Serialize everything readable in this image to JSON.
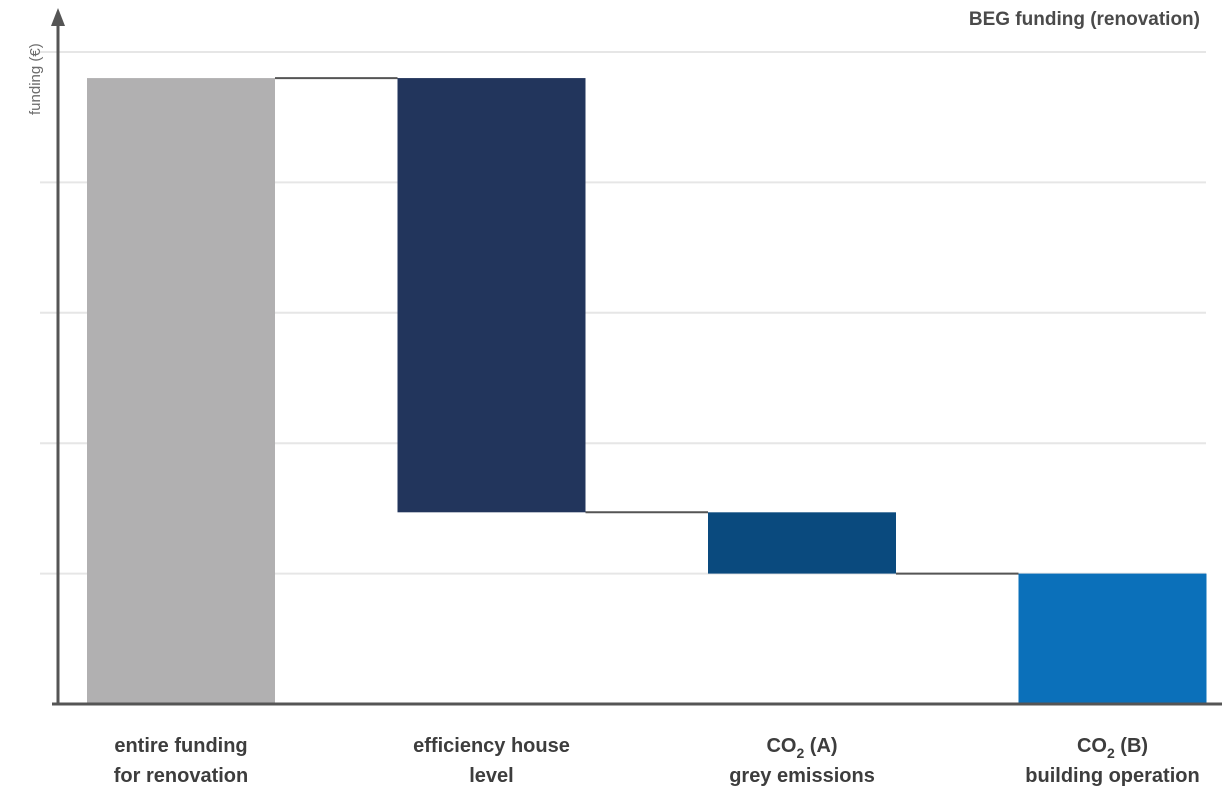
{
  "chart_data": {
    "type": "bar",
    "subtype": "waterfall",
    "title": "BEG funding (renovation)",
    "xlabel": "",
    "ylabel": "funding (€)",
    "ylim": [
      0,
      5
    ],
    "grid": true,
    "y_tick_labels_shown": false,
    "categories": [
      {
        "lines": [
          "entire funding",
          "for renovation"
        ]
      },
      {
        "lines": [
          "efficiency house",
          "level"
        ]
      },
      {
        "lines": [
          "CO",
          "2",
          " (A)"
        ],
        "line2": "grey emissions"
      },
      {
        "lines": [
          "CO",
          "2",
          " (B)"
        ],
        "line2": "building operation"
      }
    ],
    "bars": [
      {
        "start": 0,
        "end": 4.8,
        "color": "#b1b0b1"
      },
      {
        "start": 4.8,
        "end": 1.47,
        "color": "#22355c"
      },
      {
        "start": 1.47,
        "end": 1.0,
        "color": "#0a4a7e"
      },
      {
        "start": 1.0,
        "end": 0,
        "color": "#0b70ba"
      }
    ]
  },
  "colors": {
    "axis": "#555555",
    "grid": "#e6e6e6",
    "connector": "#555555"
  }
}
